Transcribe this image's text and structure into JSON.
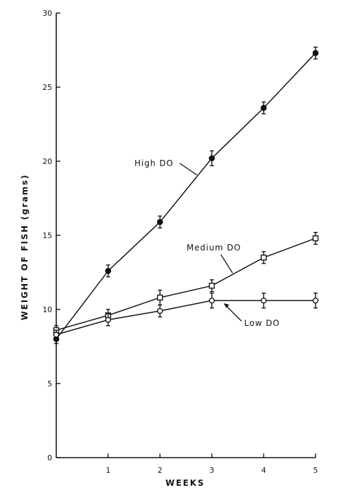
{
  "chart_data": {
    "type": "line",
    "title": "",
    "xlabel": "WEEKS",
    "ylabel": "WEIGHT OF FISH (grams)",
    "xlim": [
      0,
      5
    ],
    "ylim": [
      0,
      30
    ],
    "x_ticks": [
      1,
      2,
      3,
      4,
      5
    ],
    "y_ticks": [
      0,
      5,
      10,
      15,
      20,
      25,
      30
    ],
    "grid": false,
    "legend": "labels on lines",
    "series": [
      {
        "name": "High DO",
        "marker": "filled-circle",
        "x": [
          0,
          1,
          2,
          3,
          4,
          5
        ],
        "y": [
          8.0,
          12.6,
          15.9,
          20.2,
          23.6,
          27.3
        ],
        "error": [
          0.3,
          0.4,
          0.4,
          0.5,
          0.4,
          0.4
        ]
      },
      {
        "name": "Medium DO",
        "marker": "open-square",
        "x": [
          0,
          1,
          2,
          3,
          4,
          5
        ],
        "y": [
          8.6,
          9.6,
          10.8,
          11.6,
          13.5,
          14.8
        ],
        "error": [
          0.3,
          0.4,
          0.5,
          0.4,
          0.4,
          0.4
        ]
      },
      {
        "name": "Low DO",
        "marker": "open-circle",
        "x": [
          0,
          1,
          2,
          3,
          4,
          5
        ],
        "y": [
          8.3,
          9.3,
          9.9,
          10.6,
          10.6,
          10.6
        ],
        "error": [
          0.3,
          0.4,
          0.4,
          0.5,
          0.5,
          0.5
        ]
      }
    ],
    "label_text": {
      "high": "High DO",
      "medium": "Medium DO",
      "low": "Low DO"
    }
  },
  "colors": {
    "ink": "#111111",
    "background": "#ffffff"
  }
}
